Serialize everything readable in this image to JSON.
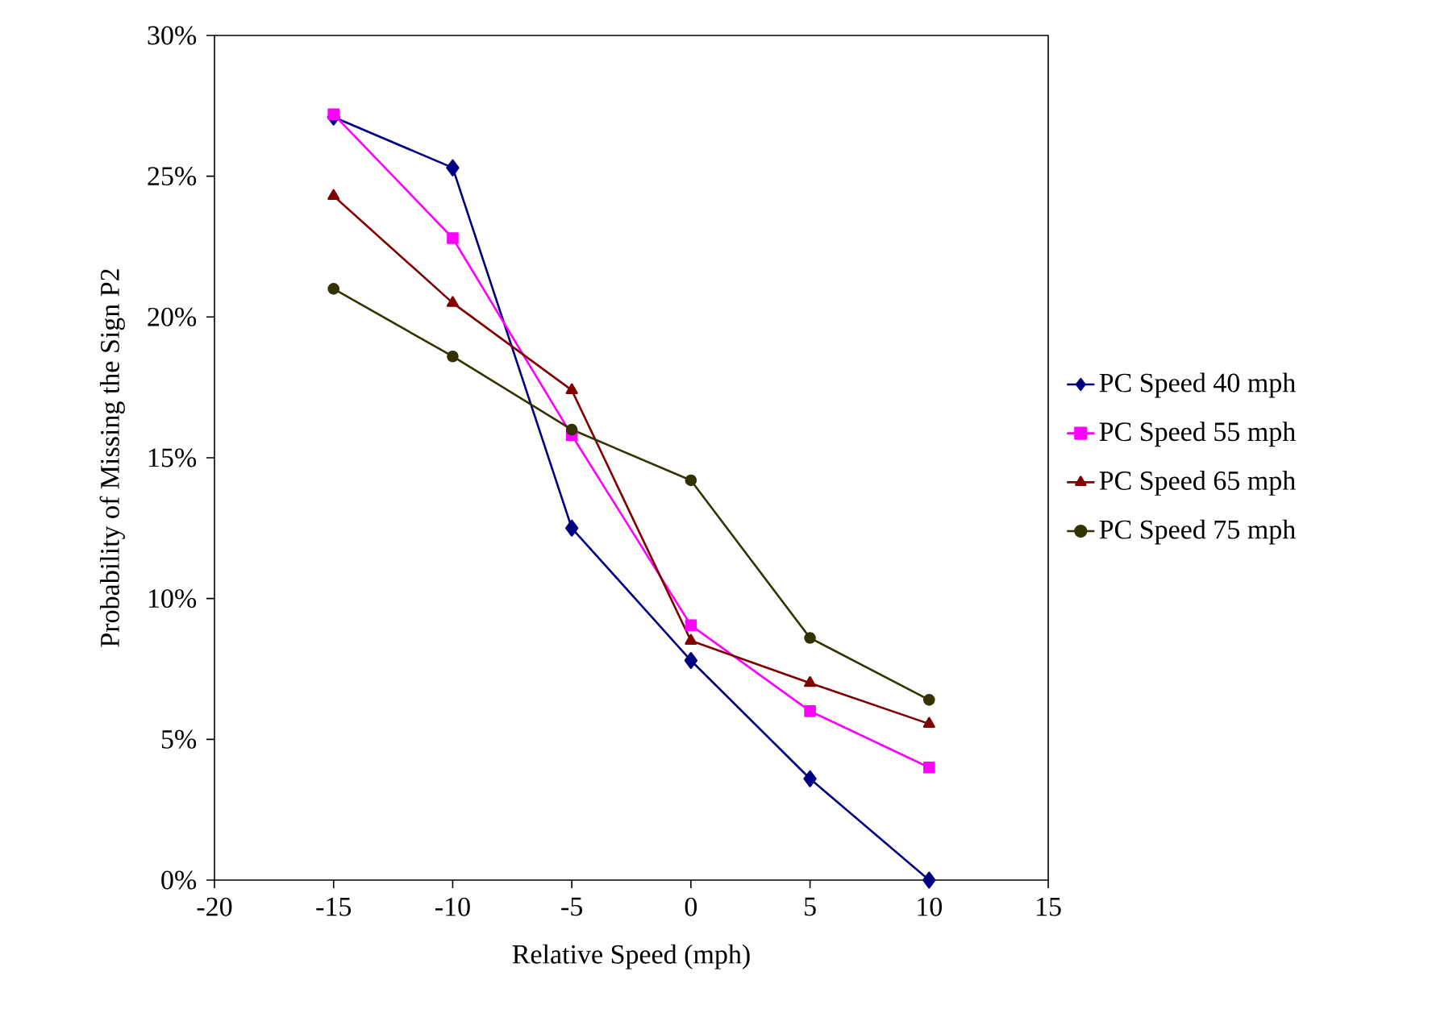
{
  "chart_data": {
    "type": "line",
    "xlabel": "Relative Speed (mph)",
    "ylabel": "Probability of Missing the Sign P2",
    "x": [
      -15,
      -10,
      -5,
      0,
      5,
      10
    ],
    "series": [
      {
        "name": "PC Speed 40 mph",
        "color": "#000080",
        "marker": "diamond",
        "values": [
          27.1,
          25.3,
          12.5,
          7.8,
          3.6,
          0
        ]
      },
      {
        "name": "PC Speed 55 mph",
        "color": "#ff00ff",
        "marker": "square",
        "values": [
          27.2,
          22.8,
          15.8,
          9.05,
          6.0,
          4.0
        ]
      },
      {
        "name": "PC Speed 65 mph",
        "color": "#800000",
        "marker": "triangle",
        "values": [
          24.3,
          20.5,
          17.4,
          8.5,
          7.0,
          5.55
        ]
      },
      {
        "name": "PC Speed 75 mph",
        "color": "#333300",
        "marker": "circle",
        "values": [
          21.0,
          18.6,
          16.0,
          14.2,
          8.6,
          6.4
        ]
      }
    ],
    "xlim": [
      -20,
      15
    ],
    "xticks": [
      -20,
      -15,
      -10,
      -5,
      0,
      5,
      10,
      15
    ],
    "ylim": [
      0,
      30
    ],
    "yticks": [
      {
        "value": 0,
        "label": "0%"
      },
      {
        "value": 5,
        "label": "5%"
      },
      {
        "value": 10,
        "label": "10%"
      },
      {
        "value": 15,
        "label": "15%"
      },
      {
        "value": 20,
        "label": "20%"
      },
      {
        "value": 25,
        "label": "25%"
      },
      {
        "value": 30,
        "label": "30%"
      }
    ],
    "legend": "right",
    "grid": false,
    "line_style": "solid"
  }
}
